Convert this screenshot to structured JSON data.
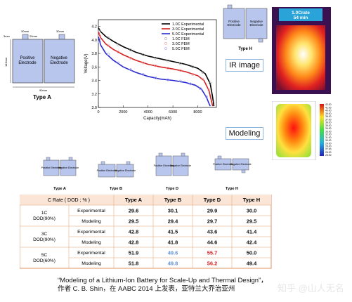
{
  "typeA": {
    "dims_top": [
      "30mm",
      "30mm"
    ],
    "dim_left": "3mm",
    "dim_mid": "20mm",
    "dim_height": "146mm",
    "dim_bottom": "90mm",
    "positive": "Positive Electrode",
    "negative": "Negative Electrode",
    "title": "Type A"
  },
  "chart_data": {
    "type": "line",
    "xlabel": "Capacity(mAh)",
    "ylabel": "Voltage(V)",
    "xlim": [
      0,
      9500
    ],
    "ylim": [
      3.0,
      4.3
    ],
    "xticks": [
      0,
      2000,
      4000,
      6000,
      8000
    ],
    "yticks": [
      3.0,
      3.2,
      3.4,
      3.6,
      3.8,
      4.0,
      4.2
    ],
    "legend_position": "top-right",
    "series": [
      {
        "name": "1.0C Experimental",
        "color": "#000000",
        "style": "line",
        "x": [
          0,
          200,
          600,
          1200,
          2000,
          3000,
          4000,
          5000,
          6000,
          7000,
          8000,
          8600,
          9000,
          9200,
          9300
        ],
        "y": [
          4.18,
          4.12,
          4.05,
          3.98,
          3.9,
          3.82,
          3.76,
          3.72,
          3.68,
          3.64,
          3.58,
          3.5,
          3.35,
          3.15,
          3.02
        ]
      },
      {
        "name": "3.0C Experimental",
        "color": "#d42020",
        "style": "line",
        "x": [
          0,
          200,
          600,
          1200,
          2000,
          3000,
          4000,
          5000,
          6000,
          7000,
          8000,
          8500,
          8900,
          9100,
          9200
        ],
        "y": [
          4.12,
          4.03,
          3.94,
          3.86,
          3.78,
          3.7,
          3.64,
          3.6,
          3.57,
          3.53,
          3.47,
          3.4,
          3.25,
          3.1,
          3.02
        ]
      },
      {
        "name": "5.0C Experimental",
        "color": "#2a2ad0",
        "style": "line",
        "x": [
          0,
          200,
          600,
          1200,
          2000,
          3000,
          4000,
          5000,
          6000,
          7000,
          7800,
          8300,
          8700,
          8900,
          9000
        ],
        "y": [
          4.05,
          3.92,
          3.8,
          3.7,
          3.6,
          3.52,
          3.46,
          3.42,
          3.4,
          3.37,
          3.33,
          3.27,
          3.15,
          3.06,
          3.02
        ]
      },
      {
        "name": "1.0C FEM",
        "color": "#a0a0a0",
        "style": "points",
        "x": [
          100,
          800,
          1600,
          2600,
          3600,
          4600,
          5600,
          6600,
          7600,
          8400,
          9000
        ],
        "y": [
          4.13,
          4.03,
          3.93,
          3.85,
          3.78,
          3.73,
          3.69,
          3.65,
          3.6,
          3.52,
          3.36
        ]
      },
      {
        "name": "3.0C FEM",
        "color": "#f0a0a0",
        "style": "points",
        "x": [
          100,
          800,
          1600,
          2600,
          3600,
          4600,
          5600,
          6600,
          7600,
          8400,
          8900
        ],
        "y": [
          4.06,
          3.92,
          3.82,
          3.73,
          3.66,
          3.62,
          3.58,
          3.55,
          3.49,
          3.42,
          3.26
        ]
      },
      {
        "name": "5.0C FEM",
        "color": "#a0a0f0",
        "style": "points",
        "x": [
          100,
          800,
          1600,
          2600,
          3600,
          4600,
          5600,
          6600,
          7400,
          8200,
          8700
        ],
        "y": [
          3.97,
          3.79,
          3.66,
          3.56,
          3.49,
          3.44,
          3.41,
          3.39,
          3.35,
          3.28,
          3.16
        ]
      }
    ]
  },
  "typeH_top": {
    "positive": "Positive Electrode",
    "negative": "Negative Electrode",
    "title": "Type H"
  },
  "ir": {
    "badge_line1": "1.0Crate",
    "badge_line2": "54 min",
    "label": "IR image"
  },
  "modeling_label": "Modeling",
  "colorbar_ticks": [
    "25.00",
    "26.00",
    "27.00",
    "28.00",
    "29.00",
    "30.00",
    "31.00",
    "32.00",
    "33.00",
    "34.00",
    "35.00",
    "36.00",
    "37.00",
    "38.00",
    "39.00",
    "40.00",
    "41.00",
    "42.00"
  ],
  "types_row": [
    {
      "title": "Type A",
      "positive": "Positive Electrode",
      "negative": "Negative Electrode"
    },
    {
      "title": "Type B",
      "positive": "Positive Electrode",
      "negative": "Negative Electrode"
    },
    {
      "title": "Type D",
      "positive": "Positive Electrode",
      "negative": "Negative Electrode"
    },
    {
      "title": "Type H",
      "positive": "Positive Electrode",
      "negative": "Negative Electrode"
    }
  ],
  "table": {
    "headers": [
      "C Rate ( DOD ; % )",
      "",
      "Type A",
      "Type B",
      "Type D",
      "Type H"
    ],
    "groups": [
      {
        "label1": "1C",
        "label2": "DOD(90%)",
        "rows": [
          {
            "kind": "Experimental",
            "values": [
              "29.6",
              "30.1",
              "29.9",
              "30.0"
            ]
          },
          {
            "kind": "Modeling",
            "values": [
              "29.5",
              "29.4",
              "29.7",
              "29.5"
            ]
          }
        ]
      },
      {
        "label1": "3C",
        "label2": "DOD(90%)",
        "rows": [
          {
            "kind": "Experimental",
            "values": [
              "42.8",
              "41.5",
              "43.6",
              "41.4"
            ]
          },
          {
            "kind": "Modeling",
            "values": [
              "42.8",
              "41.8",
              "44.6",
              "42.4"
            ]
          }
        ]
      },
      {
        "label1": "5C",
        "label2": "DOD(60%)",
        "rows": [
          {
            "kind": "Experimental",
            "values": [
              "51.9",
              "49.6",
              "55.7",
              "50.0"
            ]
          },
          {
            "kind": "Modeling",
            "values": [
              "51.8",
              "49.8",
              "56.2",
              "49.4"
            ]
          }
        ]
      }
    ],
    "highlight": {
      "blue": "#5b8fd6",
      "red": "#d42020"
    }
  },
  "caption": {
    "line1": "“Modeling of a Lithium-Ion Battery for Scale-Up and Thermal Design”，",
    "line2": "作者 C. B. Shin，在 AABC 2014 上发表，亚特兰大乔治亚州"
  },
  "watermark": "知乎 @山人无名"
}
